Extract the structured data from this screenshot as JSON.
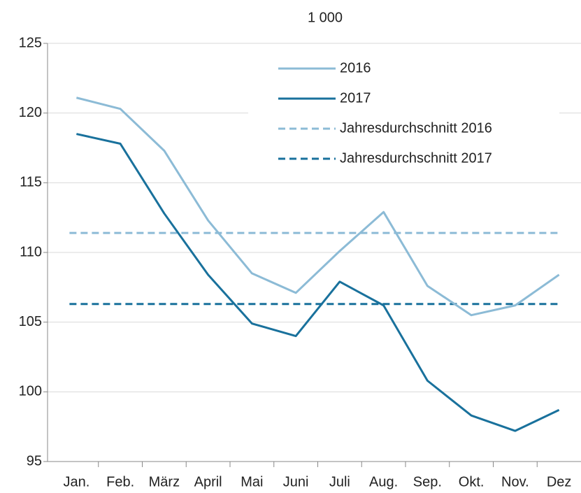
{
  "chart_data": {
    "type": "line",
    "title": "1 000",
    "categories": [
      "Jan.",
      "Feb.",
      "März",
      "April",
      "Mai",
      "Juni",
      "Juli",
      "Aug.",
      "Sep.",
      "Okt.",
      "Nov.",
      "Dez"
    ],
    "series": [
      {
        "name": "2016",
        "color": "#8cbbd6",
        "values": [
          121.1,
          120.3,
          117.3,
          112.3,
          108.5,
          107.1,
          110.1,
          112.9,
          107.6,
          105.5,
          106.2,
          108.4
        ]
      },
      {
        "name": "2017",
        "color": "#19719c",
        "values": [
          118.5,
          117.8,
          112.8,
          108.4,
          104.9,
          104.0,
          107.9,
          106.2,
          100.8,
          98.3,
          97.2,
          98.7
        ]
      }
    ],
    "reference_lines": [
      {
        "name": "Jahresdurchschnitt 2016",
        "color": "#8cbbd6",
        "value": 111.4
      },
      {
        "name": "Jahresdurchschnitt 2017",
        "color": "#19719c",
        "value": 106.3
      }
    ],
    "ylim": [
      95,
      125
    ],
    "yticks": [
      95,
      100,
      105,
      110,
      115,
      120,
      125
    ],
    "grid": true,
    "legend": "top-right"
  }
}
